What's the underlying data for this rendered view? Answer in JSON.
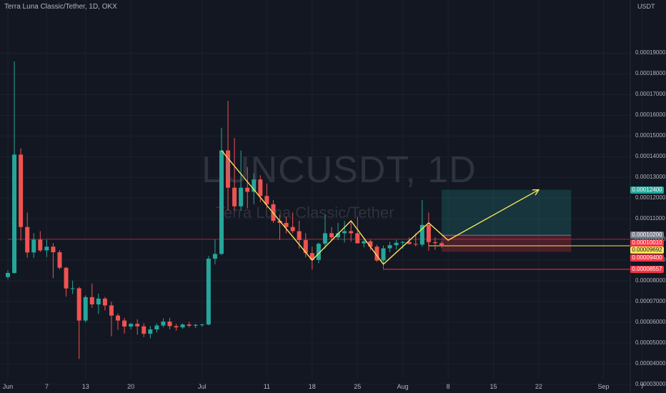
{
  "header": {
    "symbol_title": "Terra Luna Classic/Tether, 1D, OKX",
    "currency": "USDT"
  },
  "watermark": {
    "ticker": "LUNCUSDT, 1D",
    "name": "Terra Luna Classic/Tether"
  },
  "colors": {
    "background": "#131722",
    "up": "#26a69a",
    "down": "#ef5350",
    "pattern_line": "#f7e45c",
    "stop_line": "#f23645",
    "target_zone": "#26a69a",
    "stop_zone": "#f23645"
  },
  "price_axis": {
    "ticks": [
      "0.00019000",
      "0.00018000",
      "0.00017000",
      "0.00016000",
      "0.00015000",
      "0.00014000",
      "0.00013000",
      "0.00012000",
      "0.00011000",
      "0.00010000",
      "0.00009000",
      "0.00008000",
      "0.00007000",
      "0.00006000",
      "0.00005000",
      "0.00004000",
      "0.00003000"
    ]
  },
  "date_axis": {
    "ticks": [
      {
        "label": "Jun",
        "day": 0
      },
      {
        "label": "7",
        "day": 6
      },
      {
        "label": "13",
        "day": 12
      },
      {
        "label": "20",
        "day": 19
      },
      {
        "label": "Jul",
        "day": 30
      },
      {
        "label": "11",
        "day": 40
      },
      {
        "label": "18",
        "day": 47
      },
      {
        "label": "25",
        "day": 54
      },
      {
        "label": "Aug",
        "day": 61
      },
      {
        "label": "8",
        "day": 68
      },
      {
        "label": "15",
        "day": 75
      },
      {
        "label": "22",
        "day": 82
      },
      {
        "label": "Sep",
        "day": 92
      },
      {
        "label": "7",
        "day": 98
      }
    ]
  },
  "price_tags": [
    {
      "label": "0.00012400",
      "value": 0.000124,
      "bg": "#26a69a",
      "fg": "#ffffff"
    },
    {
      "label": "0.00010200",
      "value": 0.000102,
      "bg": "#787b86",
      "fg": "#ffffff"
    },
    {
      "label": "0.00010010",
      "value": 0.0001001,
      "bg": "#f23645",
      "fg": "#ffffff"
    },
    {
      "label": "0.00009692",
      "value": 9.692e-05,
      "bg": "#f7e45c",
      "fg": "#131722"
    },
    {
      "label": "0.00009400",
      "value": 9.4e-05,
      "bg": "#f23645",
      "fg": "#ffffff"
    },
    {
      "label": "0.00008557",
      "value": 8.557e-05,
      "bg": "#f23645",
      "fg": "#ffffff"
    }
  ],
  "chart_data": {
    "type": "candlestick",
    "title": "Terra Luna Classic/Tether, 1D, OKX",
    "y_unit": "USDT",
    "ylim": [
      2.82e-05,
      0.000205
    ],
    "x_start": "2022-05-29",
    "candles": [
      {
        "date": "2022-05-29",
        "o": 8.18e-05,
        "h": 8.51e-05,
        "l": 8.08e-05,
        "c": 8.38e-05
      },
      {
        "date": "2022-05-30",
        "o": 8.38e-05,
        "h": 0.000186,
        "l": 8.34e-05,
        "c": 0.000141
      },
      {
        "date": "2022-05-31",
        "o": 0.000141,
        "h": 0.000144,
        "l": 9.94e-05,
        "c": 0.000106
      },
      {
        "date": "2022-06-01",
        "o": 0.000106,
        "h": 0.000113,
        "l": 9.11e-05,
        "c": 9.37e-05
      },
      {
        "date": "2022-06-02",
        "o": 9.37e-05,
        "h": 0.000103,
        "l": 9.11e-05,
        "c": 9.99e-05
      },
      {
        "date": "2022-06-03",
        "o": 9.99e-05,
        "h": 0.000104,
        "l": 9.39e-05,
        "c": 9.47e-05
      },
      {
        "date": "2022-06-04",
        "o": 9.47e-05,
        "h": 9.99e-05,
        "l": 9.15e-05,
        "c": 9.65e-05
      },
      {
        "date": "2022-06-05",
        "o": 9.65e-05,
        "h": 9.82e-05,
        "l": 8.13e-05,
        "c": 9.38e-05
      },
      {
        "date": "2022-06-06",
        "o": 9.38e-05,
        "h": 9.48e-05,
        "l": 8.55e-05,
        "c": 8.63e-05
      },
      {
        "date": "2022-06-07",
        "o": 8.63e-05,
        "h": 8.67e-05,
        "l": 7.24e-05,
        "c": 7.63e-05
      },
      {
        "date": "2022-06-08",
        "o": 7.63e-05,
        "h": 8.01e-05,
        "l": 7.36e-05,
        "c": 7.64e-05
      },
      {
        "date": "2022-06-09",
        "o": 7.64e-05,
        "h": 7.71e-05,
        "l": 4.22e-05,
        "c": 6.08e-05
      },
      {
        "date": "2022-06-10",
        "o": 6.08e-05,
        "h": 7.3e-05,
        "l": 5.99e-05,
        "c": 7.21e-05
      },
      {
        "date": "2022-06-11",
        "o": 7.21e-05,
        "h": 7.87e-05,
        "l": 6.7e-05,
        "c": 6.86e-05
      },
      {
        "date": "2022-06-12",
        "o": 6.86e-05,
        "h": 7.38e-05,
        "l": 6.4e-05,
        "c": 7.14e-05
      },
      {
        "date": "2022-06-13",
        "o": 7.14e-05,
        "h": 7.22e-05,
        "l": 6.57e-05,
        "c": 6.81e-05
      },
      {
        "date": "2022-06-14",
        "o": 6.81e-05,
        "h": 6.99e-05,
        "l": 5.32e-05,
        "c": 6.32e-05
      },
      {
        "date": "2022-06-15",
        "o": 6.32e-05,
        "h": 6.42e-05,
        "l": 5.63e-05,
        "c": 6.08e-05
      },
      {
        "date": "2022-06-16",
        "o": 6.08e-05,
        "h": 6.21e-05,
        "l": 5.45e-05,
        "c": 5.79e-05
      },
      {
        "date": "2022-06-17",
        "o": 5.79e-05,
        "h": 5.96e-05,
        "l": 5.65e-05,
        "c": 5.92e-05
      },
      {
        "date": "2022-06-18",
        "o": 5.92e-05,
        "h": 6.14e-05,
        "l": 5.4e-05,
        "c": 5.8e-05
      },
      {
        "date": "2022-06-19",
        "o": 5.8e-05,
        "h": 5.95e-05,
        "l": 5.28e-05,
        "c": 5.44e-05
      },
      {
        "date": "2022-06-20",
        "o": 5.44e-05,
        "h": 5.82e-05,
        "l": 5.22e-05,
        "c": 5.65e-05
      },
      {
        "date": "2022-06-21",
        "o": 5.65e-05,
        "h": 5.94e-05,
        "l": 5.5e-05,
        "c": 5.84e-05
      },
      {
        "date": "2022-06-22",
        "o": 5.84e-05,
        "h": 6.19e-05,
        "l": 5.75e-05,
        "c": 6.03e-05
      },
      {
        "date": "2022-06-23",
        "o": 6.03e-05,
        "h": 6.21e-05,
        "l": 5.65e-05,
        "c": 5.81e-05
      },
      {
        "date": "2022-06-24",
        "o": 5.81e-05,
        "h": 5.92e-05,
        "l": 5.59e-05,
        "c": 5.75e-05
      },
      {
        "date": "2022-06-25",
        "o": 5.75e-05,
        "h": 5.94e-05,
        "l": 5.68e-05,
        "c": 5.89e-05
      },
      {
        "date": "2022-06-26",
        "o": 5.89e-05,
        "h": 6.02e-05,
        "l": 5.75e-05,
        "c": 5.83e-05
      },
      {
        "date": "2022-06-27",
        "o": 5.83e-05,
        "h": 5.92e-05,
        "l": 5.72e-05,
        "c": 5.87e-05
      },
      {
        "date": "2022-06-28",
        "o": 5.87e-05,
        "h": 5.92e-05,
        "l": 5.78e-05,
        "c": 5.89e-05
      },
      {
        "date": "2022-06-29",
        "o": 5.89e-05,
        "h": 9.2e-05,
        "l": 5.85e-05,
        "c": 9.07e-05
      },
      {
        "date": "2022-06-30",
        "o": 9.07e-05,
        "h": 0.0001,
        "l": 8.8e-05,
        "c": 9.3e-05
      },
      {
        "date": "2022-07-01",
        "o": 9.3e-05,
        "h": 0.000154,
        "l": 9.24e-05,
        "c": 0.000143
      },
      {
        "date": "2022-07-02",
        "o": 0.000143,
        "h": 0.000167,
        "l": 0.000114,
        "c": 0.000125
      },
      {
        "date": "2022-07-03",
        "o": 0.000125,
        "h": 0.000149,
        "l": 0.000114,
        "c": 0.000116
      },
      {
        "date": "2022-07-04",
        "o": 0.000116,
        "h": 0.000143,
        "l": 0.000114,
        "c": 0.000125
      },
      {
        "date": "2022-07-05",
        "o": 0.000125,
        "h": 0.000135,
        "l": 0.000115,
        "c": 0.000123
      },
      {
        "date": "2022-07-06",
        "o": 0.000123,
        "h": 0.000132,
        "l": 0.000117,
        "c": 0.000129
      },
      {
        "date": "2022-07-07",
        "o": 0.000129,
        "h": 0.000131,
        "l": 0.000118,
        "c": 0.000121
      },
      {
        "date": "2022-07-08",
        "o": 0.000121,
        "h": 0.000127,
        "l": 0.000115,
        "c": 0.000117
      },
      {
        "date": "2022-07-09",
        "o": 0.000117,
        "h": 0.000119,
        "l": 0.000108,
        "c": 0.000109
      },
      {
        "date": "2022-07-10",
        "o": 0.000109,
        "h": 0.000112,
        "l": 9.98e-05,
        "c": 0.000108
      },
      {
        "date": "2022-07-11",
        "o": 0.000108,
        "h": 0.000111,
        "l": 0.000103,
        "c": 0.000106
      },
      {
        "date": "2022-07-12",
        "o": 0.000106,
        "h": 0.000113,
        "l": 0.000103,
        "c": 0.000104
      },
      {
        "date": "2022-07-13",
        "o": 0.000104,
        "h": 0.000109,
        "l": 9.56e-05,
        "c": 9.97e-05
      },
      {
        "date": "2022-07-14",
        "o": 9.97e-05,
        "h": 0.000103,
        "l": 9.14e-05,
        "c": 9.34e-05
      },
      {
        "date": "2022-07-15",
        "o": 9.34e-05,
        "h": 9.65e-05,
        "l": 8.54e-05,
        "c": 9.01e-05
      },
      {
        "date": "2022-07-16",
        "o": 9.01e-05,
        "h": 9.85e-05,
        "l": 8.85e-05,
        "c": 9.79e-05
      },
      {
        "date": "2022-07-17",
        "o": 9.79e-05,
        "h": 0.000112,
        "l": 9.55e-05,
        "c": 0.000103
      },
      {
        "date": "2022-07-18",
        "o": 0.000103,
        "h": 0.000106,
        "l": 9.93e-05,
        "c": 0.000101
      },
      {
        "date": "2022-07-19",
        "o": 0.000101,
        "h": 0.000108,
        "l": 9.98e-05,
        "c": 0.000103
      },
      {
        "date": "2022-07-20",
        "o": 0.000103,
        "h": 0.000109,
        "l": 9.85e-05,
        "c": 0.000104
      },
      {
        "date": "2022-07-21",
        "o": 0.000104,
        "h": 0.000109,
        "l": 9.89e-05,
        "c": 0.000103
      },
      {
        "date": "2022-07-22",
        "o": 0.000103,
        "h": 0.000111,
        "l": 9.85e-05,
        "c": 9.81e-05
      },
      {
        "date": "2022-07-23",
        "o": 9.81e-05,
        "h": 0.0001,
        "l": 9.62e-05,
        "c": 9.91e-05
      },
      {
        "date": "2022-07-24",
        "o": 9.91e-05,
        "h": 9.99e-05,
        "l": 9.48e-05,
        "c": 9.65e-05
      },
      {
        "date": "2022-07-25",
        "o": 9.65e-05,
        "h": 9.74e-05,
        "l": 8.92e-05,
        "c": 8.98e-05
      },
      {
        "date": "2022-07-26",
        "o": 8.98e-05,
        "h": 9.7e-05,
        "l": 8.86e-05,
        "c": 9.57e-05
      },
      {
        "date": "2022-07-27",
        "o": 9.57e-05,
        "h": 9.89e-05,
        "l": 9.38e-05,
        "c": 9.72e-05
      },
      {
        "date": "2022-07-28",
        "o": 9.72e-05,
        "h": 9.98e-05,
        "l": 9.51e-05,
        "c": 9.84e-05
      },
      {
        "date": "2022-07-29",
        "o": 9.84e-05,
        "h": 9.92e-05,
        "l": 9.55e-05,
        "c": 9.88e-05
      },
      {
        "date": "2022-07-30",
        "o": 9.88e-05,
        "h": 0.000101,
        "l": 9.75e-05,
        "c": 9.78e-05
      },
      {
        "date": "2022-07-31",
        "o": 9.78e-05,
        "h": 0.000103,
        "l": 9.66e-05,
        "c": 9.75e-05
      },
      {
        "date": "2022-08-01",
        "o": 9.75e-05,
        "h": 0.000119,
        "l": 9.65e-05,
        "c": 0.000107
      },
      {
        "date": "2022-08-02",
        "o": 0.000107,
        "h": 0.000113,
        "l": 9.45e-05,
        "c": 9.87e-05
      },
      {
        "date": "2022-08-03",
        "o": 9.87e-05,
        "h": 0.000101,
        "l": 9.5e-05,
        "c": 9.82e-05
      },
      {
        "date": "2022-08-04",
        "o": 9.82e-05,
        "h": 9.92e-05,
        "l": 9.6e-05,
        "c": 9.69e-05
      }
    ],
    "pattern_line": {
      "points": [
        {
          "date": "2022-07-01",
          "price": 0.000143
        },
        {
          "date": "2022-07-15",
          "price": 9e-05
        },
        {
          "date": "2022-07-21",
          "price": 0.000109
        },
        {
          "date": "2022-07-26",
          "price": 8.8e-05
        },
        {
          "date": "2022-08-02",
          "price": 0.000108
        },
        {
          "date": "2022-08-05",
          "price": 9.96e-05
        },
        {
          "date": "2022-08-19",
          "price": 0.000124
        }
      ]
    },
    "position": {
      "start_date": "2022-08-04",
      "end_date": "2022-08-24",
      "target": 0.000124,
      "entry": 0.000102,
      "stop": 9.4e-05
    },
    "levels": [
      {
        "price": 9.692e-05,
        "from_date": "2022-08-02",
        "color": "#f7e45c"
      },
      {
        "price": 8.557e-05,
        "from_date": "2022-07-26",
        "color": "#f23645"
      },
      {
        "price": 0.0001001,
        "from_date": "2022-05-29",
        "color": "#f23645"
      }
    ]
  }
}
